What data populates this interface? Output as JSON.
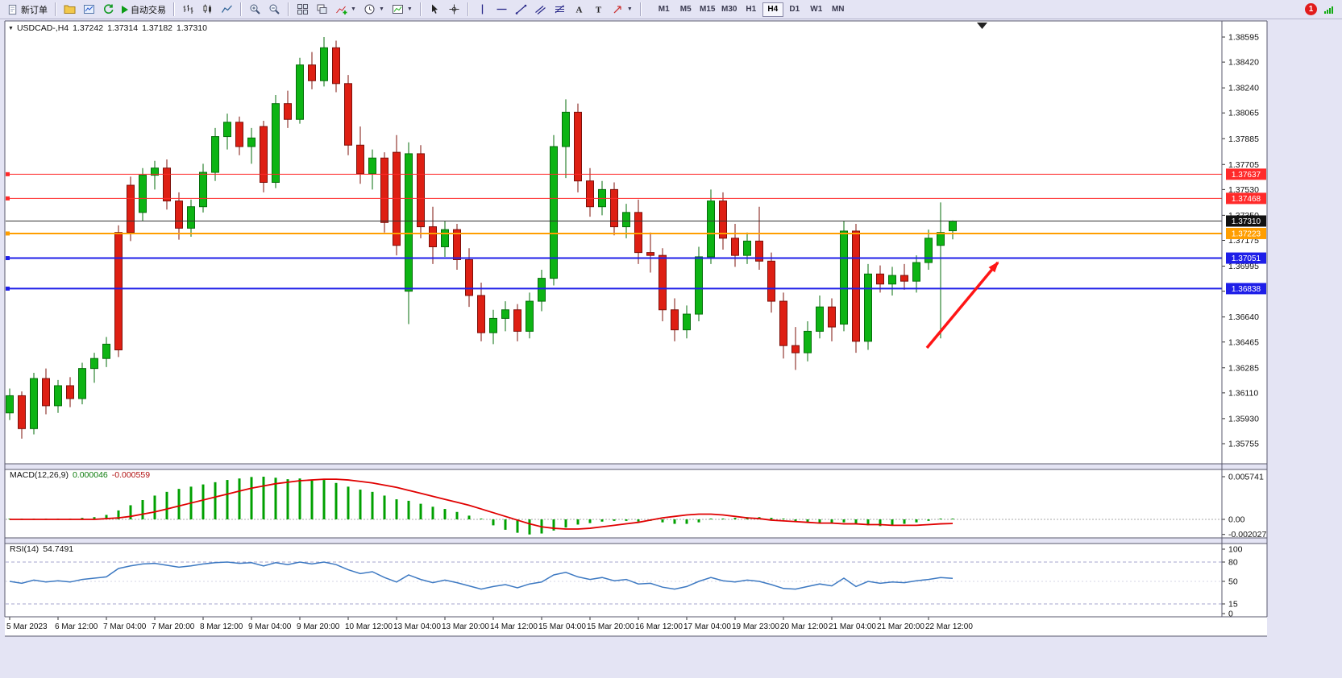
{
  "colors": {
    "chrome_bg": "#e4e4f4",
    "bull": "#0db414",
    "bull_dark": "#066e0b",
    "bear": "#de1f13",
    "bear_dark": "#7c100a",
    "macd_hist": "#00a000",
    "macd_signal": "#e00000",
    "rsi_line": "#3d79c2",
    "arrow": "#ff1515",
    "line_red": "#ff2a2a",
    "line_orange": "#ff9e00",
    "line_blue": "#1f1fe8",
    "current_price_tag": "#111111"
  },
  "toolbar": {
    "new_order_label": "新订单",
    "autotrading_label": "自动交易",
    "timeframes": [
      "M1",
      "M5",
      "M15",
      "M30",
      "H1",
      "H4",
      "D1",
      "W1",
      "MN"
    ],
    "active_timeframe": "H4",
    "notification_count": "1"
  },
  "chart": {
    "title_bar": {
      "symbol": "USDCAD-,H4",
      "open": "1.37242",
      "high": "1.37314",
      "low": "1.37182",
      "close": "1.37310"
    },
    "price_ticks": [
      "1.38595",
      "1.38420",
      "1.38240",
      "1.38065",
      "1.37885",
      "1.37705",
      "1.37530",
      "1.37350",
      "1.37175",
      "1.36995",
      "1.36820",
      "1.36640",
      "1.36465",
      "1.36285",
      "1.36110",
      "1.35930",
      "1.35755"
    ],
    "hlines": [
      {
        "price": 1.37637,
        "label": "1.37637",
        "color": "#ff2a2a",
        "width": 1
      },
      {
        "price": 1.37468,
        "label": "1.37468",
        "color": "#ff2a2a",
        "width": 1
      },
      {
        "price": 1.37223,
        "label": "1.37223",
        "color": "#ff9e00",
        "width": 2
      },
      {
        "price": 1.37051,
        "label": "1.37051",
        "color": "#1f1fe8",
        "width": 2
      },
      {
        "price": 1.36838,
        "label": "1.36838",
        "color": "#1f1fe8",
        "width": 2
      }
    ],
    "current_price": {
      "price": 1.3731,
      "label": "1.37310"
    }
  },
  "macd": {
    "name": "MACD(12,26,9)",
    "main_value": "0.000046",
    "signal_value": "-0.000559",
    "axis_labels": [
      {
        "v": 0.005741,
        "t": "0.005741"
      },
      {
        "v": 0,
        "t": "0.00"
      },
      {
        "v": -0.002027,
        "t": "-0.002027"
      }
    ]
  },
  "rsi": {
    "name": "RSI(14)",
    "value": "54.7491",
    "axis_labels": [
      100,
      80,
      50,
      15,
      0
    ],
    "levels_dashed": [
      80,
      15
    ],
    "level_mid": 50
  },
  "chart_data": {
    "type": "candlestick",
    "symbol": "USDCAD-",
    "timeframe": "H4",
    "y_range": [
      1.35755,
      1.38595
    ],
    "bars_per_label": 4,
    "x_labels": [
      "5 Mar 2023",
      "6 Mar 12:00",
      "7 Mar 04:00",
      "7 Mar 20:00",
      "8 Mar 12:00",
      "9 Mar 04:00",
      "9 Mar 20:00",
      "10 Mar 12:00",
      "13 Mar 04:00",
      "13 Mar 20:00",
      "14 Mar 12:00",
      "15 Mar 04:00",
      "15 Mar 20:00",
      "16 Mar 12:00",
      "17 Mar 04:00",
      "19 Mar 23:00",
      "20 Mar 12:00",
      "21 Mar 04:00",
      "21 Mar 20:00",
      "22 Mar 12:00"
    ],
    "candles_ohlc": [
      [
        1.3597,
        1.3614,
        1.3592,
        1.3609
      ],
      [
        1.3609,
        1.3612,
        1.3579,
        1.3586
      ],
      [
        1.3586,
        1.3625,
        1.3582,
        1.3621
      ],
      [
        1.3621,
        1.3628,
        1.3596,
        1.3602
      ],
      [
        1.3602,
        1.362,
        1.3597,
        1.3616
      ],
      [
        1.3616,
        1.3622,
        1.3601,
        1.3607
      ],
      [
        1.3607,
        1.3632,
        1.3603,
        1.3628
      ],
      [
        1.3628,
        1.3639,
        1.3618,
        1.3635
      ],
      [
        1.3635,
        1.365,
        1.3629,
        1.3645
      ],
      [
        1.3723,
        1.3728,
        1.3636,
        1.3641
      ],
      [
        1.3756,
        1.3762,
        1.3717,
        1.3723
      ],
      [
        1.3737,
        1.3768,
        1.3731,
        1.3763
      ],
      [
        1.3763,
        1.3773,
        1.3753,
        1.3768
      ],
      [
        1.3768,
        1.3774,
        1.3739,
        1.3745
      ],
      [
        1.3745,
        1.3751,
        1.3718,
        1.3726
      ],
      [
        1.3726,
        1.3746,
        1.372,
        1.3741
      ],
      [
        1.3741,
        1.3771,
        1.3737,
        1.3765
      ],
      [
        1.3765,
        1.3796,
        1.3759,
        1.379
      ],
      [
        1.379,
        1.3806,
        1.3781,
        1.38
      ],
      [
        1.38,
        1.3804,
        1.3777,
        1.3783
      ],
      [
        1.3783,
        1.3796,
        1.3771,
        1.3789
      ],
      [
        1.3797,
        1.3801,
        1.3751,
        1.3758
      ],
      [
        1.3758,
        1.3819,
        1.3754,
        1.3813
      ],
      [
        1.3813,
        1.3822,
        1.3796,
        1.3802
      ],
      [
        1.3802,
        1.3845,
        1.3799,
        1.384
      ],
      [
        1.384,
        1.3849,
        1.3823,
        1.3829
      ],
      [
        1.3829,
        1.38595,
        1.3825,
        1.3852
      ],
      [
        1.3852,
        1.3857,
        1.3821,
        1.3827
      ],
      [
        1.3827,
        1.3833,
        1.3777,
        1.3784
      ],
      [
        1.3784,
        1.3797,
        1.3757,
        1.3764
      ],
      [
        1.3764,
        1.3781,
        1.3753,
        1.3775
      ],
      [
        1.3775,
        1.3779,
        1.3723,
        1.373
      ],
      [
        1.3779,
        1.3791,
        1.3707,
        1.3714
      ],
      [
        1.3682,
        1.3786,
        1.3659,
        1.3778
      ],
      [
        1.3778,
        1.3784,
        1.3719,
        1.3727
      ],
      [
        1.3727,
        1.3741,
        1.3701,
        1.3713
      ],
      [
        1.3713,
        1.3731,
        1.3706,
        1.3725
      ],
      [
        1.3725,
        1.3729,
        1.3697,
        1.3704
      ],
      [
        1.3704,
        1.3712,
        1.3671,
        1.3679
      ],
      [
        1.3679,
        1.3688,
        1.3647,
        1.3653
      ],
      [
        1.3653,
        1.3669,
        1.3645,
        1.3663
      ],
      [
        1.3663,
        1.3675,
        1.3654,
        1.3669
      ],
      [
        1.3669,
        1.3673,
        1.3647,
        1.3654
      ],
      [
        1.3654,
        1.3681,
        1.3649,
        1.3675
      ],
      [
        1.3675,
        1.3697,
        1.3668,
        1.3691
      ],
      [
        1.3691,
        1.3791,
        1.3686,
        1.3783
      ],
      [
        1.3783,
        1.3816,
        1.3761,
        1.3807
      ],
      [
        1.3807,
        1.3813,
        1.3751,
        1.3759
      ],
      [
        1.3759,
        1.3768,
        1.3734,
        1.3741
      ],
      [
        1.3741,
        1.3759,
        1.3735,
        1.3753
      ],
      [
        1.3753,
        1.3758,
        1.3721,
        1.3727
      ],
      [
        1.3727,
        1.3743,
        1.3719,
        1.3737
      ],
      [
        1.3737,
        1.3746,
        1.3701,
        1.3709
      ],
      [
        1.3709,
        1.3723,
        1.3695,
        1.3707
      ],
      [
        1.3707,
        1.3712,
        1.3661,
        1.3669
      ],
      [
        1.3669,
        1.3677,
        1.3647,
        1.3655
      ],
      [
        1.3655,
        1.3672,
        1.3649,
        1.3666
      ],
      [
        1.3666,
        1.3713,
        1.3661,
        1.3706
      ],
      [
        1.3706,
        1.3753,
        1.3701,
        1.3745
      ],
      [
        1.3745,
        1.3751,
        1.3711,
        1.3719
      ],
      [
        1.3719,
        1.3729,
        1.3699,
        1.3707
      ],
      [
        1.3707,
        1.3723,
        1.3701,
        1.3717
      ],
      [
        1.3717,
        1.3741,
        1.3697,
        1.3703
      ],
      [
        1.3703,
        1.3709,
        1.3667,
        1.3675
      ],
      [
        1.3675,
        1.3681,
        1.3635,
        1.3644
      ],
      [
        1.3644,
        1.3657,
        1.3627,
        1.3639
      ],
      [
        1.3639,
        1.3661,
        1.3633,
        1.3654
      ],
      [
        1.3654,
        1.3679,
        1.3649,
        1.3671
      ],
      [
        1.3671,
        1.3677,
        1.3647,
        1.3657
      ],
      [
        1.3659,
        1.3731,
        1.3654,
        1.3724
      ],
      [
        1.3724,
        1.3729,
        1.3639,
        1.3647
      ],
      [
        1.3647,
        1.3701,
        1.3641,
        1.3694
      ],
      [
        1.3694,
        1.37,
        1.3681,
        1.3687
      ],
      [
        1.3687,
        1.3699,
        1.3679,
        1.3693
      ],
      [
        1.3693,
        1.3701,
        1.3683,
        1.3689
      ],
      [
        1.3689,
        1.3707,
        1.3681,
        1.3702
      ],
      [
        1.3702,
        1.3725,
        1.3697,
        1.3719
      ],
      [
        1.3714,
        1.3744,
        1.3649,
        1.3723
      ],
      [
        1.37242,
        1.37314,
        1.37182,
        1.3731
      ]
    ],
    "indicators": {
      "macd_histogram": [
        0.0001,
        0,
        -0.0001,
        0,
        0.0001,
        0.0001,
        0.0002,
        0.0003,
        0.0006,
        0.0012,
        0.0019,
        0.0026,
        0.0032,
        0.0037,
        0.0041,
        0.0044,
        0.0047,
        0.005,
        0.0053,
        0.0055,
        0.0057,
        0.00574,
        0.0056,
        0.0054,
        0.0055,
        0.0052,
        0.0053,
        0.0049,
        0.0044,
        0.004,
        0.0037,
        0.0032,
        0.0027,
        0.0025,
        0.0021,
        0.0017,
        0.0014,
        0.001,
        0.0005,
        0.0001,
        -0.0008,
        -0.0014,
        -0.0018,
        -0.00203,
        -0.0019,
        -0.0015,
        -0.0011,
        -0.0007,
        -0.0005,
        -0.0003,
        -0.0002,
        -0.0002,
        -0.0003,
        -0.0002,
        -0.0004,
        -0.0006,
        -0.0006,
        -0.0004,
        -0.0001,
        0.0001,
        0.0002,
        0.0003,
        0.0003,
        0.0002,
        -0.0001,
        -0.0003,
        -0.0004,
        -0.0005,
        -0.0006,
        -0.0004,
        -0.0007,
        -0.0008,
        -0.0009,
        -0.0008,
        -0.0006,
        -0.0004,
        -0.0002,
        0,
        4.6e-05
      ],
      "macd_signal": [
        0,
        0,
        0,
        0,
        0,
        0,
        0,
        0,
        0.0001,
        0.0002,
        0.0004,
        0.0007,
        0.001,
        0.0014,
        0.0018,
        0.0022,
        0.0026,
        0.003,
        0.0034,
        0.0038,
        0.0042,
        0.0045,
        0.0048,
        0.005,
        0.0052,
        0.0053,
        0.0054,
        0.0054,
        0.0053,
        0.0051,
        0.0049,
        0.0046,
        0.0043,
        0.0039,
        0.0035,
        0.0031,
        0.0027,
        0.0023,
        0.0019,
        0.0014,
        0.0009,
        0.0004,
        -0.0001,
        -0.0006,
        -0.001,
        -0.0012,
        -0.0013,
        -0.0013,
        -0.0012,
        -0.001,
        -0.0008,
        -0.0006,
        -0.0004,
        -0.0001,
        0.0002,
        0.0004,
        0.0006,
        0.0007,
        0.0007,
        0.0006,
        0.0004,
        0.0002,
        0.0001,
        -0.0001,
        -0.0002,
        -0.0003,
        -0.0004,
        -0.0005,
        -0.0005,
        -0.0006,
        -0.0006,
        -0.0007,
        -0.0007,
        -0.0008,
        -0.0008,
        -0.0008,
        -0.0007,
        -0.0006,
        -0.000559
      ],
      "rsi": [
        50,
        47,
        52,
        49,
        51,
        49,
        53,
        55,
        57,
        70,
        74,
        77,
        78,
        75,
        72,
        74,
        77,
        79,
        80,
        78,
        79,
        74,
        79,
        76,
        80,
        77,
        80,
        76,
        68,
        62,
        65,
        56,
        49,
        60,
        53,
        48,
        52,
        48,
        43,
        38,
        42,
        45,
        40,
        46,
        49,
        60,
        64,
        57,
        53,
        56,
        51,
        53,
        46,
        47,
        41,
        38,
        42,
        50,
        56,
        51,
        49,
        52,
        50,
        45,
        39,
        38,
        42,
        46,
        43,
        55,
        42,
        50,
        47,
        49,
        48,
        51,
        53,
        56,
        54.7491
      ]
    }
  }
}
